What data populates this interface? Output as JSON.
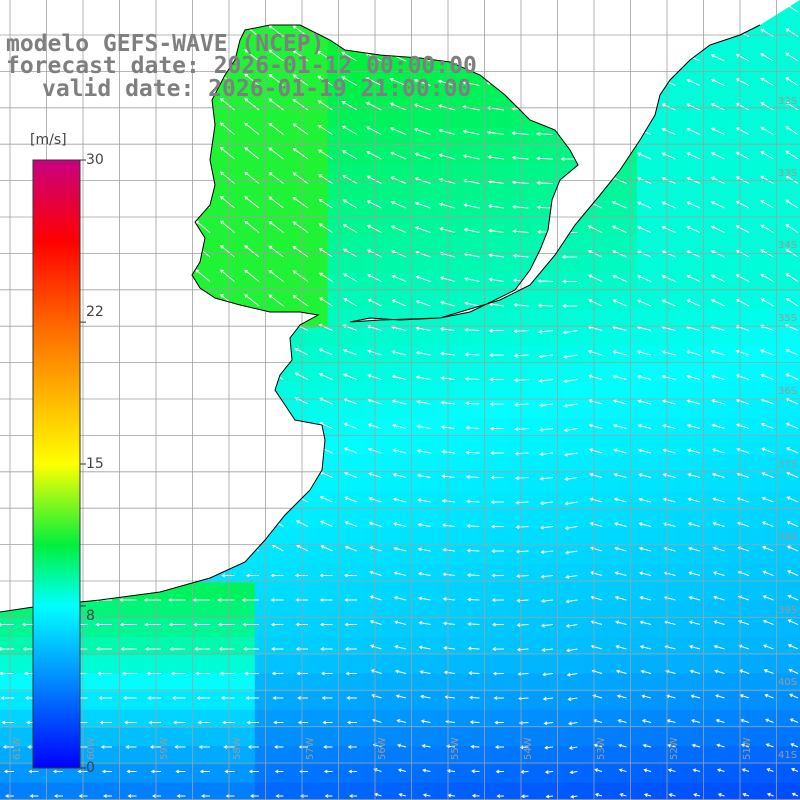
{
  "title": {
    "line1": "modelo GEFS-WAVE (NCEP)",
    "line2": "forecast date: 2026-01-12 00:00:00",
    "line3": "valid date: 2026-01-19 21:00:00"
  },
  "colorbar": {
    "unit": "[m/s]",
    "ticks": [
      "30",
      "22",
      "15",
      "8",
      "0"
    ],
    "tick_values": [
      30,
      22,
      15,
      8,
      0
    ],
    "range": [
      0,
      30
    ]
  },
  "map": {
    "lat_labels": [
      "32S",
      "33S",
      "34S",
      "35S",
      "36S",
      "37S",
      "38S",
      "39S",
      "40S",
      "41S"
    ],
    "lon_labels": [
      "61W",
      "60W",
      "59W",
      "58W",
      "57W",
      "56W",
      "55W",
      "54W",
      "53W",
      "52W",
      "51W"
    ],
    "land_color": "#ffffff",
    "grid_color": "#a0a0a0",
    "coast_color": "#000000",
    "arrow_color": "#ffffff"
  }
}
